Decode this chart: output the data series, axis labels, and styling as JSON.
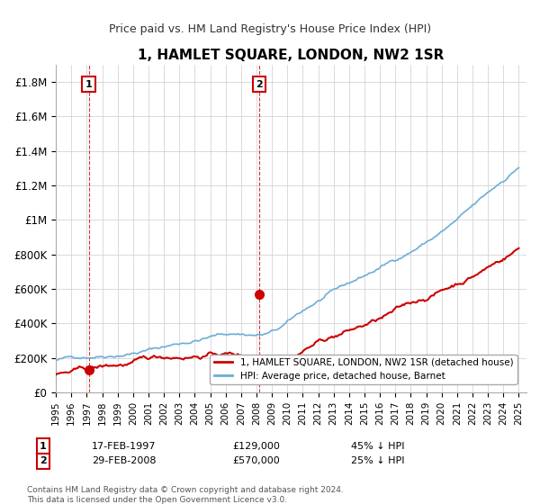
{
  "title": "1, HAMLET SQUARE, LONDON, NW2 1SR",
  "subtitle": "Price paid vs. HM Land Registry's House Price Index (HPI)",
  "ylabel_ticks": [
    "£0",
    "£200K",
    "£400K",
    "£600K",
    "£800K",
    "£1M",
    "£1.2M",
    "£1.4M",
    "£1.6M",
    "£1.8M"
  ],
  "ylabel_values": [
    0,
    200000,
    400000,
    600000,
    800000,
    1000000,
    1200000,
    1400000,
    1600000,
    1800000
  ],
  "ylim": [
    0,
    1900000
  ],
  "xlim_start": 1995.0,
  "xlim_end": 2025.5,
  "sale1_year": 1997.125,
  "sale1_price": 129000,
  "sale1_label": "1",
  "sale1_date": "17-FEB-1997",
  "sale1_pct": "45% ↓ HPI",
  "sale2_year": 2008.167,
  "sale2_price": 570000,
  "sale2_label": "2",
  "sale2_date": "29-FEB-2008",
  "sale2_pct": "25% ↓ HPI",
  "hpi_color": "#6baed6",
  "price_color": "#cc0000",
  "vline_color": "#cc0000",
  "marker_color": "#cc0000",
  "legend_line1": "1, HAMLET SQUARE, LONDON, NW2 1SR (detached house)",
  "legend_line2": "HPI: Average price, detached house, Barnet",
  "footnote": "Contains HM Land Registry data © Crown copyright and database right 2024.\nThis data is licensed under the Open Government Licence v3.0.",
  "background_color": "#ffffff",
  "grid_color": "#cccccc"
}
